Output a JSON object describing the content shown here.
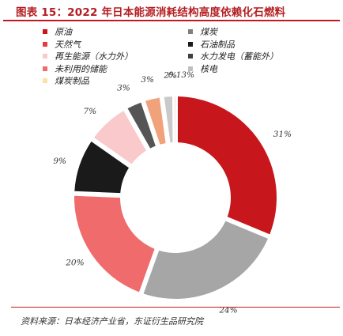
{
  "title": "图表 15：2022 年日本能源消耗结构高度依赖化石燃料",
  "source": "资料来源：日本经济产业省，东证衍生品研究院",
  "colors": {
    "accent": "#c0191f",
    "title": "#b41e22"
  },
  "chart_data": {
    "type": "pie",
    "variant": "donut",
    "legend_position": "top",
    "series": [
      {
        "name": "原油",
        "value": 31,
        "label": "31%",
        "color": "#c8161d"
      },
      {
        "name": "天然气",
        "value": 24,
        "label": "24%",
        "color": "#a6a6a6"
      },
      {
        "name": "再生能源（水力外）",
        "value": 20,
        "label": "20%",
        "color": "#f06b6b"
      },
      {
        "name": "未利用的储能",
        "value": 9,
        "label": "9%",
        "color": "#1a1a1a"
      },
      {
        "name": "煤炭制品",
        "value": 7,
        "label": "7%",
        "color": "#f9c9cc"
      },
      {
        "name": "煤炭",
        "value": 3,
        "label": "3%",
        "color": "#555555"
      },
      {
        "name": "石油制品",
        "value": 3,
        "label": "3%",
        "color": "#f2a27a"
      },
      {
        "name": "水力发电（蓄能外）",
        "value": 2,
        "label": "2%",
        "color": "#c9c9c9"
      },
      {
        "name": "核电",
        "value": 0.13,
        "label": "0.13%",
        "color": "#e59a6e"
      }
    ],
    "legend": [
      {
        "name": "原油",
        "color": "#c8161d"
      },
      {
        "name": "煤炭",
        "color": "#7f7f7f"
      },
      {
        "name": "天然气",
        "color": "#e8393f"
      },
      {
        "name": "石油制品",
        "color": "#1a1a1a"
      },
      {
        "name": "再生能源（水力外）",
        "color": "#f9c9cc"
      },
      {
        "name": "水力发电（蓄能外）",
        "color": "#404040"
      },
      {
        "name": "未利用的储能",
        "color": "#f06b6b"
      },
      {
        "name": "核电",
        "color": "#bfbfbf"
      },
      {
        "name": "煤炭制品",
        "color": "#fbe3a5"
      }
    ]
  }
}
